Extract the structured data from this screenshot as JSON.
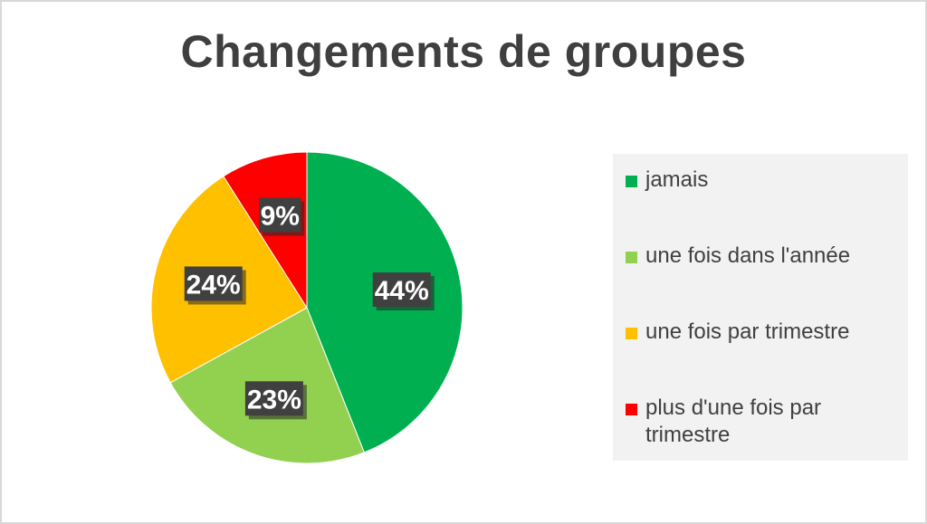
{
  "chart_data": {
    "type": "pie",
    "title": "Changements de groupes",
    "categories": [
      "jamais",
      "une fois dans l'année",
      "une fois par trimestre",
      "plus d'une fois par trimestre"
    ],
    "values": [
      44,
      23,
      24,
      9
    ],
    "value_labels": [
      "44%",
      "23%",
      "24%",
      "9%"
    ],
    "colors": [
      "#00b050",
      "#92d050",
      "#ffc000",
      "#ff0000"
    ],
    "start_angle_deg": 0,
    "direction": "clockwise",
    "legend_position": "right"
  }
}
